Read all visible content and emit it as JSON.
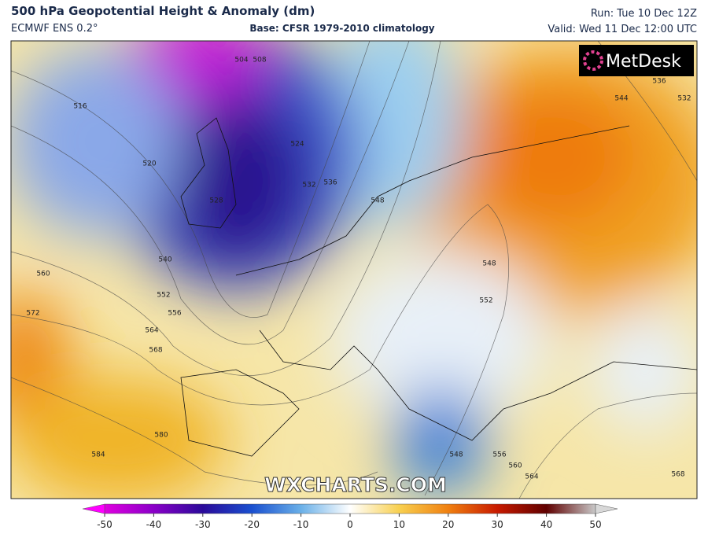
{
  "header": {
    "title": "500 hPa Geopotential Height & Anomaly (dm)",
    "model": "ECMWF ENS 0.2°",
    "base": "Base: CFSR 1979-2010 climatology",
    "run": "Run: Tue 10 Dec 12Z",
    "valid": "Valid: Wed 11 Dec 12:00 UTC"
  },
  "logo": "MetDesk",
  "watermark": "WXCHARTS.COM",
  "contour_labels": [
    504,
    508,
    516,
    520,
    524,
    528,
    532,
    536,
    540,
    548,
    552,
    556,
    560,
    564,
    568,
    572,
    580,
    584,
    548,
    552,
    548,
    556,
    560,
    564,
    568,
    544,
    536,
    532
  ],
  "colorbar": {
    "lim": [
      -50,
      50
    ],
    "ticks": [
      -50,
      -40,
      -30,
      -20,
      -10,
      0,
      10,
      20,
      30,
      40,
      50
    ]
  }
}
